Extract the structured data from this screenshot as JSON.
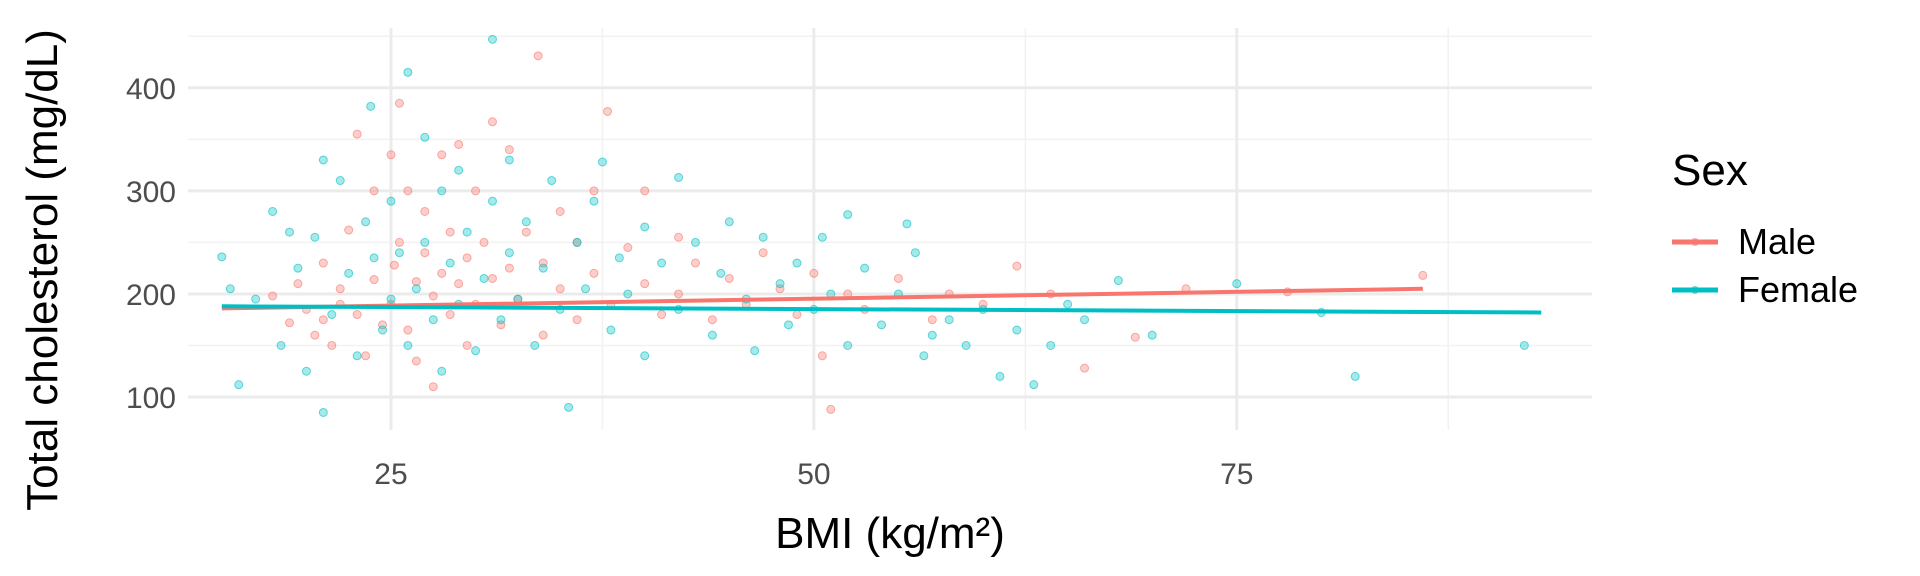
{
  "chart_data": {
    "type": "scatter",
    "xlabel": "BMI (kg/m²)",
    "ylabel": "Total cholesterol (mg/dL)",
    "xlim": [
      13,
      96
    ],
    "ylim": [
      68,
      458
    ],
    "x_ticks": [
      25,
      50,
      75
    ],
    "y_ticks": [
      100,
      200,
      300,
      400
    ],
    "grid": true,
    "legend": {
      "title": "Sex",
      "placement": "right"
    },
    "series": [
      {
        "name": "Male",
        "color": "#F8766D",
        "trend": {
          "x": [
            15,
            86
          ],
          "y": [
            186,
            205
          ]
        },
        "points": [
          [
            18,
            198
          ],
          [
            19,
            172
          ],
          [
            19.5,
            210
          ],
          [
            20,
            185
          ],
          [
            20.5,
            160
          ],
          [
            21,
            230
          ],
          [
            21,
            175
          ],
          [
            21.5,
            150
          ],
          [
            22,
            205
          ],
          [
            22,
            190
          ],
          [
            22.5,
            262
          ],
          [
            23,
            355
          ],
          [
            23,
            180
          ],
          [
            23.5,
            140
          ],
          [
            24,
            214
          ],
          [
            24,
            300
          ],
          [
            24.5,
            170
          ],
          [
            25,
            335
          ],
          [
            25,
            190
          ],
          [
            25.2,
            228
          ],
          [
            25.5,
            385
          ],
          [
            25.5,
            250
          ],
          [
            26,
            165
          ],
          [
            26,
            300
          ],
          [
            26.5,
            212
          ],
          [
            26.5,
            135
          ],
          [
            27,
            240
          ],
          [
            27,
            280
          ],
          [
            27.5,
            198
          ],
          [
            27.5,
            110
          ],
          [
            28,
            335
          ],
          [
            28,
            220
          ],
          [
            28.5,
            180
          ],
          [
            28.5,
            260
          ],
          [
            29,
            345
          ],
          [
            29,
            210
          ],
          [
            29.5,
            150
          ],
          [
            29.5,
            235
          ],
          [
            30,
            300
          ],
          [
            30,
            190
          ],
          [
            30.5,
            250
          ],
          [
            31,
            367
          ],
          [
            31,
            215
          ],
          [
            31.5,
            170
          ],
          [
            32,
            340
          ],
          [
            32,
            225
          ],
          [
            32.5,
            195
          ],
          [
            33,
            260
          ],
          [
            33.7,
            431
          ],
          [
            34,
            230
          ],
          [
            34,
            160
          ],
          [
            35,
            280
          ],
          [
            35,
            205
          ],
          [
            36,
            250
          ],
          [
            36,
            175
          ],
          [
            37,
            300
          ],
          [
            37,
            220
          ],
          [
            37.8,
            377
          ],
          [
            38,
            190
          ],
          [
            39,
            245
          ],
          [
            40,
            300
          ],
          [
            40,
            210
          ],
          [
            41,
            180
          ],
          [
            42,
            255
          ],
          [
            42,
            200
          ],
          [
            43,
            230
          ],
          [
            44,
            175
          ],
          [
            45,
            215
          ],
          [
            46,
            190
          ],
          [
            47,
            240
          ],
          [
            48,
            205
          ],
          [
            49,
            180
          ],
          [
            50,
            220
          ],
          [
            50.5,
            140
          ],
          [
            51,
            88
          ],
          [
            52,
            200
          ],
          [
            53,
            185
          ],
          [
            55,
            215
          ],
          [
            57,
            175
          ],
          [
            58,
            200
          ],
          [
            60,
            190
          ],
          [
            62,
            227
          ],
          [
            64,
            200
          ],
          [
            66,
            128
          ],
          [
            69,
            158
          ],
          [
            72,
            205
          ],
          [
            78,
            202
          ],
          [
            86,
            218
          ]
        ]
      },
      {
        "name": "Female",
        "color": "#00BFC4",
        "trend": {
          "x": [
            15,
            93
          ],
          "y": [
            188,
            182
          ]
        },
        "points": [
          [
            15,
            236
          ],
          [
            15.5,
            205
          ],
          [
            16,
            112
          ],
          [
            17,
            195
          ],
          [
            18,
            280
          ],
          [
            18.5,
            150
          ],
          [
            19,
            260
          ],
          [
            19.5,
            225
          ],
          [
            20,
            125
          ],
          [
            20.5,
            255
          ],
          [
            21,
            85
          ],
          [
            21,
            330
          ],
          [
            21.5,
            180
          ],
          [
            22,
            310
          ],
          [
            22.5,
            220
          ],
          [
            23,
            140
          ],
          [
            23.5,
            270
          ],
          [
            23.8,
            382
          ],
          [
            24,
            235
          ],
          [
            24.5,
            165
          ],
          [
            25,
            290
          ],
          [
            25,
            195
          ],
          [
            25.5,
            240
          ],
          [
            26,
            415
          ],
          [
            26,
            150
          ],
          [
            26.5,
            205
          ],
          [
            27,
            352
          ],
          [
            27,
            250
          ],
          [
            27.5,
            175
          ],
          [
            28,
            300
          ],
          [
            28,
            125
          ],
          [
            28.5,
            230
          ],
          [
            29,
            320
          ],
          [
            29,
            190
          ],
          [
            29.5,
            260
          ],
          [
            30,
            145
          ],
          [
            30.5,
            215
          ],
          [
            31,
            447
          ],
          [
            31,
            290
          ],
          [
            31.5,
            175
          ],
          [
            32,
            330
          ],
          [
            32,
            240
          ],
          [
            32.5,
            195
          ],
          [
            33,
            270
          ],
          [
            33.5,
            150
          ],
          [
            34,
            225
          ],
          [
            34.5,
            310
          ],
          [
            35,
            185
          ],
          [
            35.5,
            90
          ],
          [
            36,
            250
          ],
          [
            36.5,
            205
          ],
          [
            37,
            290
          ],
          [
            37.5,
            328
          ],
          [
            38,
            165
          ],
          [
            38.5,
            235
          ],
          [
            39,
            200
          ],
          [
            40,
            265
          ],
          [
            40,
            140
          ],
          [
            41,
            230
          ],
          [
            42,
            313
          ],
          [
            42,
            185
          ],
          [
            43,
            250
          ],
          [
            44,
            160
          ],
          [
            44.5,
            220
          ],
          [
            45,
            270
          ],
          [
            46,
            195
          ],
          [
            46.5,
            145
          ],
          [
            47,
            255
          ],
          [
            48,
            210
          ],
          [
            48.5,
            170
          ],
          [
            49,
            230
          ],
          [
            50,
            185
          ],
          [
            50.5,
            255
          ],
          [
            51,
            200
          ],
          [
            52,
            277
          ],
          [
            52,
            150
          ],
          [
            53,
            225
          ],
          [
            54,
            170
          ],
          [
            55,
            200
          ],
          [
            55.5,
            268
          ],
          [
            56,
            240
          ],
          [
            56.5,
            140
          ],
          [
            57,
            160
          ],
          [
            58,
            175
          ],
          [
            59,
            150
          ],
          [
            60,
            185
          ],
          [
            61,
            120
          ],
          [
            62,
            165
          ],
          [
            63,
            112
          ],
          [
            64,
            150
          ],
          [
            65,
            190
          ],
          [
            66,
            175
          ],
          [
            68,
            213
          ],
          [
            70,
            160
          ],
          [
            75,
            210
          ],
          [
            80,
            182
          ],
          [
            82,
            120
          ],
          [
            92,
            150
          ]
        ]
      }
    ]
  }
}
